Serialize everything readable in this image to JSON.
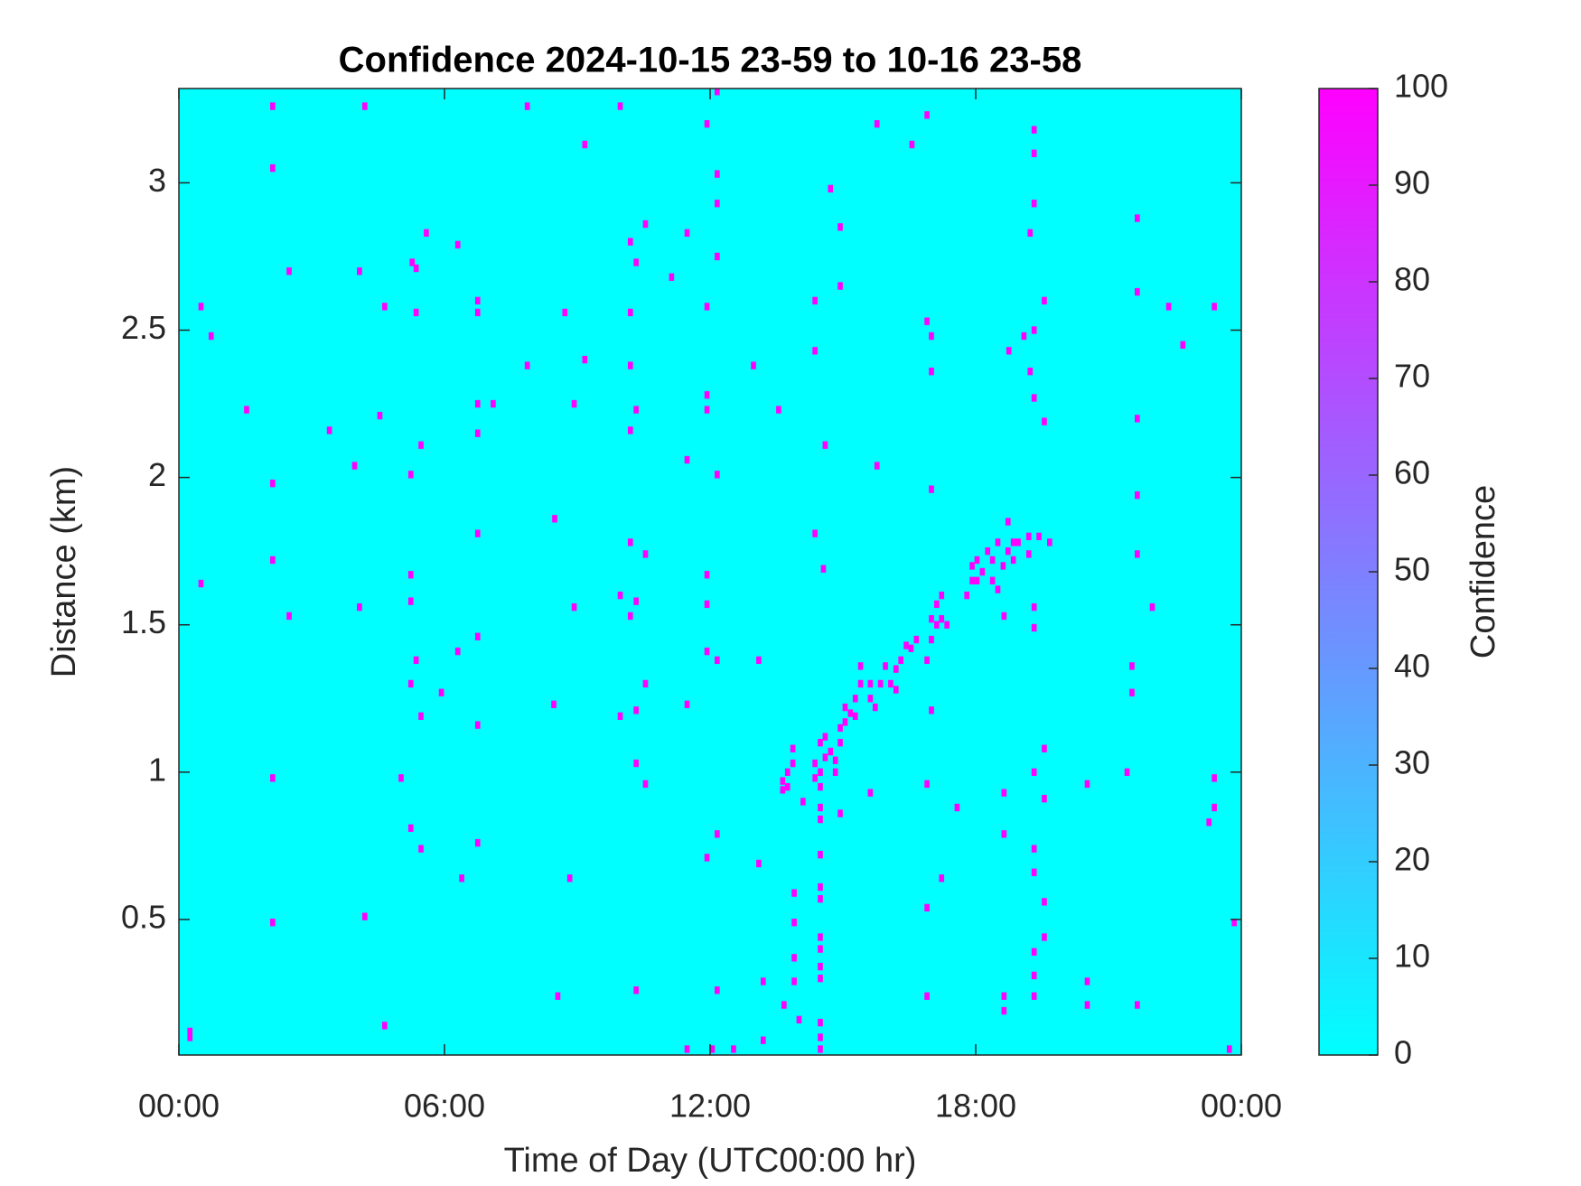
{
  "chart_data": {
    "type": "heatmap",
    "title": "Confidence 2024-10-15 23-59 to 10-16 23-58",
    "x_label": "Time of Day (UTC00:00 hr)",
    "y_label": "Distance (km)",
    "colorbar_label": "Confidence",
    "colormap": [
      "#00ffff",
      "#ff00ff"
    ],
    "xlim": [
      0,
      24
    ],
    "xticks": [
      {
        "value": 0,
        "label": "00:00"
      },
      {
        "value": 6,
        "label": "06:00"
      },
      {
        "value": 12,
        "label": "12:00"
      },
      {
        "value": 18,
        "label": "18:00"
      },
      {
        "value": 24,
        "label": "00:00"
      }
    ],
    "ylim": [
      0.04,
      3.32
    ],
    "yticks": [
      0.5,
      1,
      1.5,
      2,
      2.5,
      3
    ],
    "clim": [
      0,
      100
    ],
    "cticks": [
      0,
      10,
      20,
      30,
      40,
      50,
      60,
      70,
      80,
      90,
      100
    ],
    "cells": [
      [
        2.12,
        3.26,
        100
      ],
      [
        4.2,
        3.26,
        100
      ],
      [
        7.87,
        3.26,
        100
      ],
      [
        9.97,
        3.26,
        100
      ],
      [
        12.16,
        3.31,
        100
      ],
      [
        11.93,
        3.2,
        100
      ],
      [
        15.77,
        3.2,
        100
      ],
      [
        16.9,
        3.23,
        100
      ],
      [
        16.56,
        3.13,
        100
      ],
      [
        19.32,
        3.18,
        100
      ],
      [
        19.32,
        3.1,
        100
      ],
      [
        9.17,
        3.13,
        100
      ],
      [
        2.12,
        3.05,
        100
      ],
      [
        12.16,
        3.03,
        100
      ],
      [
        14.72,
        2.98,
        100
      ],
      [
        12.16,
        2.93,
        100
      ],
      [
        19.32,
        2.93,
        100
      ],
      [
        21.65,
        2.88,
        100
      ],
      [
        10.54,
        2.86,
        100
      ],
      [
        14.94,
        2.85,
        100
      ],
      [
        11.48,
        2.83,
        100
      ],
      [
        5.59,
        2.83,
        100
      ],
      [
        6.3,
        2.79,
        100
      ],
      [
        10.2,
        2.8,
        100
      ],
      [
        19.23,
        2.83,
        100
      ],
      [
        5.27,
        2.73,
        100
      ],
      [
        5.36,
        2.71,
        100
      ],
      [
        10.33,
        2.73,
        100
      ],
      [
        12.16,
        2.75,
        100
      ],
      [
        2.49,
        2.7,
        100
      ],
      [
        4.08,
        2.7,
        100
      ],
      [
        11.13,
        2.68,
        100
      ],
      [
        14.94,
        2.65,
        100
      ],
      [
        21.65,
        2.63,
        100
      ],
      [
        0.5,
        2.58,
        100
      ],
      [
        0.73,
        2.48,
        100
      ],
      [
        4.65,
        2.58,
        100
      ],
      [
        5.36,
        2.56,
        100
      ],
      [
        6.75,
        2.6,
        100
      ],
      [
        6.75,
        2.56,
        100
      ],
      [
        8.72,
        2.56,
        100
      ],
      [
        10.2,
        2.56,
        100
      ],
      [
        11.93,
        2.58,
        100
      ],
      [
        14.37,
        2.6,
        100
      ],
      [
        19.55,
        2.6,
        100
      ],
      [
        22.36,
        2.58,
        100
      ],
      [
        23.39,
        2.58,
        100
      ],
      [
        16.9,
        2.53,
        100
      ],
      [
        17.0,
        2.48,
        100
      ],
      [
        19.32,
        2.5,
        100
      ],
      [
        19.09,
        2.48,
        100
      ],
      [
        22.68,
        2.45,
        100
      ],
      [
        18.75,
        2.43,
        100
      ],
      [
        14.37,
        2.43,
        100
      ],
      [
        9.17,
        2.4,
        100
      ],
      [
        7.87,
        2.38,
        100
      ],
      [
        10.2,
        2.38,
        100
      ],
      [
        12.98,
        2.38,
        100
      ],
      [
        17.0,
        2.36,
        100
      ],
      [
        19.23,
        2.36,
        100
      ],
      [
        19.32,
        2.27,
        100
      ],
      [
        11.93,
        2.28,
        100
      ],
      [
        11.93,
        2.23,
        100
      ],
      [
        6.75,
        2.25,
        100
      ],
      [
        7.1,
        2.25,
        100
      ],
      [
        6.75,
        2.15,
        100
      ],
      [
        8.93,
        2.25,
        100
      ],
      [
        1.53,
        2.23,
        100
      ],
      [
        4.54,
        2.21,
        100
      ],
      [
        10.33,
        2.23,
        100
      ],
      [
        13.55,
        2.23,
        100
      ],
      [
        21.65,
        2.2,
        100
      ],
      [
        19.55,
        2.19,
        100
      ],
      [
        3.4,
        2.16,
        100
      ],
      [
        10.2,
        2.16,
        100
      ],
      [
        5.47,
        2.11,
        100
      ],
      [
        14.6,
        2.11,
        100
      ],
      [
        11.48,
        2.06,
        100
      ],
      [
        3.97,
        2.04,
        100
      ],
      [
        15.77,
        2.04,
        100
      ],
      [
        5.24,
        2.01,
        100
      ],
      [
        12.16,
        2.01,
        100
      ],
      [
        2.12,
        1.98,
        100
      ],
      [
        17.0,
        1.96,
        100
      ],
      [
        21.65,
        1.94,
        100
      ],
      [
        8.49,
        1.86,
        100
      ],
      [
        6.75,
        1.81,
        100
      ],
      [
        14.37,
        1.81,
        100
      ],
      [
        10.2,
        1.78,
        100
      ],
      [
        10.54,
        1.74,
        100
      ],
      [
        21.65,
        1.74,
        100
      ],
      [
        2.12,
        1.72,
        100
      ],
      [
        0.5,
        1.64,
        100
      ],
      [
        5.24,
        1.67,
        100
      ],
      [
        11.93,
        1.67,
        100
      ],
      [
        14.56,
        1.69,
        100
      ],
      [
        9.97,
        1.6,
        100
      ],
      [
        10.33,
        1.58,
        100
      ],
      [
        5.24,
        1.58,
        100
      ],
      [
        11.93,
        1.57,
        100
      ],
      [
        4.08,
        1.56,
        100
      ],
      [
        8.93,
        1.56,
        100
      ],
      [
        19.32,
        1.56,
        100
      ],
      [
        21.99,
        1.56,
        100
      ],
      [
        2.49,
        1.53,
        100
      ],
      [
        18.64,
        1.53,
        100
      ],
      [
        19.32,
        1.49,
        100
      ],
      [
        10.2,
        1.53,
        100
      ],
      [
        6.75,
        1.46,
        100
      ],
      [
        6.3,
        1.41,
        100
      ],
      [
        11.93,
        1.41,
        100
      ],
      [
        12.16,
        1.38,
        100
      ],
      [
        13.1,
        1.38,
        100
      ],
      [
        5.36,
        1.38,
        100
      ],
      [
        5.24,
        1.3,
        100
      ],
      [
        21.53,
        1.36,
        100
      ],
      [
        5.93,
        1.27,
        100
      ],
      [
        10.54,
        1.3,
        100
      ],
      [
        21.53,
        1.27,
        100
      ],
      [
        8.47,
        1.23,
        100
      ],
      [
        11.48,
        1.23,
        100
      ],
      [
        5.47,
        1.19,
        100
      ],
      [
        9.97,
        1.19,
        100
      ],
      [
        10.33,
        1.21,
        100
      ],
      [
        17.0,
        1.21,
        100
      ],
      [
        6.75,
        1.16,
        100
      ],
      [
        19.55,
        1.08,
        100
      ],
      [
        2.12,
        0.98,
        100
      ],
      [
        5.02,
        0.98,
        100
      ],
      [
        10.33,
        1.03,
        100
      ],
      [
        10.54,
        0.96,
        100
      ],
      [
        21.42,
        1.0,
        100
      ],
      [
        19.32,
        1.0,
        100
      ],
      [
        23.39,
        0.98,
        100
      ],
      [
        20.52,
        0.96,
        100
      ],
      [
        16.9,
        0.96,
        100
      ],
      [
        15.62,
        0.93,
        100
      ],
      [
        18.64,
        0.93,
        100
      ],
      [
        19.55,
        0.91,
        100
      ],
      [
        17.58,
        0.88,
        100
      ],
      [
        23.39,
        0.88,
        100
      ],
      [
        23.27,
        0.83,
        100
      ],
      [
        14.94,
        0.86,
        100
      ],
      [
        5.24,
        0.81,
        100
      ],
      [
        12.16,
        0.79,
        100
      ],
      [
        18.64,
        0.79,
        100
      ],
      [
        6.75,
        0.76,
        100
      ],
      [
        5.47,
        0.74,
        100
      ],
      [
        19.32,
        0.74,
        100
      ],
      [
        11.93,
        0.71,
        100
      ],
      [
        13.1,
        0.69,
        100
      ],
      [
        19.32,
        0.66,
        100
      ],
      [
        6.39,
        0.64,
        100
      ],
      [
        8.83,
        0.64,
        100
      ],
      [
        17.23,
        0.64,
        100
      ],
      [
        13.9,
        0.59,
        100
      ],
      [
        19.55,
        0.56,
        100
      ],
      [
        16.9,
        0.54,
        100
      ],
      [
        2.12,
        0.49,
        100
      ],
      [
        4.2,
        0.51,
        100
      ],
      [
        23.84,
        0.49,
        100
      ],
      [
        13.9,
        0.49,
        100
      ],
      [
        19.55,
        0.44,
        100
      ],
      [
        13.9,
        0.37,
        100
      ],
      [
        19.32,
        0.39,
        100
      ],
      [
        19.32,
        0.31,
        100
      ],
      [
        13.2,
        0.29,
        100
      ],
      [
        13.9,
        0.29,
        100
      ],
      [
        20.52,
        0.29,
        100
      ],
      [
        10.33,
        0.26,
        100
      ],
      [
        12.16,
        0.26,
        100
      ],
      [
        16.9,
        0.24,
        100
      ],
      [
        8.56,
        0.24,
        100
      ],
      [
        18.64,
        0.24,
        100
      ],
      [
        19.32,
        0.24,
        100
      ],
      [
        20.52,
        0.21,
        100
      ],
      [
        21.65,
        0.21,
        100
      ],
      [
        13.67,
        0.21,
        100
      ],
      [
        18.64,
        0.19,
        100
      ],
      [
        14.01,
        0.16,
        100
      ],
      [
        4.65,
        0.14,
        100
      ],
      [
        0.25,
        0.12,
        100
      ],
      [
        0.25,
        0.1,
        100
      ],
      [
        13.2,
        0.09,
        100
      ],
      [
        11.48,
        0.06,
        100
      ],
      [
        12.05,
        0.06,
        100
      ],
      [
        12.53,
        0.06,
        100
      ],
      [
        23.73,
        0.06,
        100
      ],
      [
        13.64,
        0.97,
        100
      ],
      [
        13.64,
        0.94,
        100
      ],
      [
        13.75,
        0.95,
        100
      ],
      [
        13.75,
        1.0,
        100
      ],
      [
        13.87,
        1.08,
        100
      ],
      [
        13.87,
        1.03,
        100
      ],
      [
        14.1,
        0.9,
        100
      ],
      [
        14.37,
        0.98,
        100
      ],
      [
        14.37,
        1.03,
        100
      ],
      [
        14.49,
        1.0,
        100
      ],
      [
        14.49,
        0.95,
        100
      ],
      [
        14.49,
        1.1,
        100
      ],
      [
        14.6,
        1.05,
        100
      ],
      [
        14.6,
        1.12,
        100
      ],
      [
        14.72,
        1.07,
        100
      ],
      [
        14.83,
        1.0,
        100
      ],
      [
        14.83,
        1.04,
        100
      ],
      [
        14.94,
        1.1,
        100
      ],
      [
        14.94,
        1.15,
        100
      ],
      [
        15.05,
        1.17,
        100
      ],
      [
        15.05,
        1.22,
        100
      ],
      [
        15.17,
        1.2,
        100
      ],
      [
        15.28,
        1.19,
        100
      ],
      [
        15.28,
        1.25,
        100
      ],
      [
        15.4,
        1.3,
        100
      ],
      [
        15.4,
        1.36,
        100
      ],
      [
        15.62,
        1.25,
        100
      ],
      [
        15.62,
        1.3,
        100
      ],
      [
        15.73,
        1.22,
        100
      ],
      [
        15.85,
        1.3,
        100
      ],
      [
        15.96,
        1.36,
        100
      ],
      [
        16.08,
        1.3,
        100
      ],
      [
        16.2,
        1.28,
        100
      ],
      [
        16.2,
        1.35,
        100
      ],
      [
        16.31,
        1.38,
        100
      ],
      [
        16.43,
        1.43,
        100
      ],
      [
        16.54,
        1.42,
        100
      ],
      [
        16.66,
        1.45,
        100
      ],
      [
        16.9,
        1.38,
        100
      ],
      [
        17.0,
        1.45,
        100
      ],
      [
        17.0,
        1.52,
        100
      ],
      [
        17.12,
        1.5,
        100
      ],
      [
        17.12,
        1.57,
        100
      ],
      [
        17.23,
        1.52,
        100
      ],
      [
        17.23,
        1.6,
        100
      ],
      [
        17.35,
        1.5,
        100
      ],
      [
        17.8,
        1.6,
        100
      ],
      [
        17.92,
        1.65,
        100
      ],
      [
        17.92,
        1.7,
        100
      ],
      [
        18.03,
        1.65,
        100
      ],
      [
        18.03,
        1.72,
        100
      ],
      [
        18.15,
        1.68,
        100
      ],
      [
        18.27,
        1.75,
        100
      ],
      [
        18.38,
        1.65,
        100
      ],
      [
        18.38,
        1.72,
        100
      ],
      [
        18.5,
        1.78,
        100
      ],
      [
        18.5,
        1.62,
        100
      ],
      [
        18.62,
        1.7,
        100
      ],
      [
        18.73,
        1.85,
        100
      ],
      [
        18.73,
        1.75,
        100
      ],
      [
        18.85,
        1.78,
        100
      ],
      [
        18.85,
        1.72,
        100
      ],
      [
        18.96,
        1.78,
        100
      ],
      [
        19.2,
        1.8,
        100
      ],
      [
        19.2,
        1.74,
        100
      ],
      [
        19.43,
        1.8,
        100
      ],
      [
        19.67,
        1.78,
        100
      ],
      [
        14.49,
        0.06,
        100
      ],
      [
        14.49,
        0.1,
        100
      ],
      [
        14.49,
        0.15,
        100
      ],
      [
        14.49,
        0.3,
        100
      ],
      [
        14.49,
        0.34,
        100
      ],
      [
        14.49,
        0.4,
        100
      ],
      [
        14.49,
        0.44,
        100
      ],
      [
        14.49,
        0.57,
        100
      ],
      [
        14.49,
        0.61,
        100
      ],
      [
        14.49,
        0.72,
        100
      ],
      [
        14.49,
        0.84,
        100
      ],
      [
        14.49,
        0.88,
        100
      ]
    ]
  }
}
